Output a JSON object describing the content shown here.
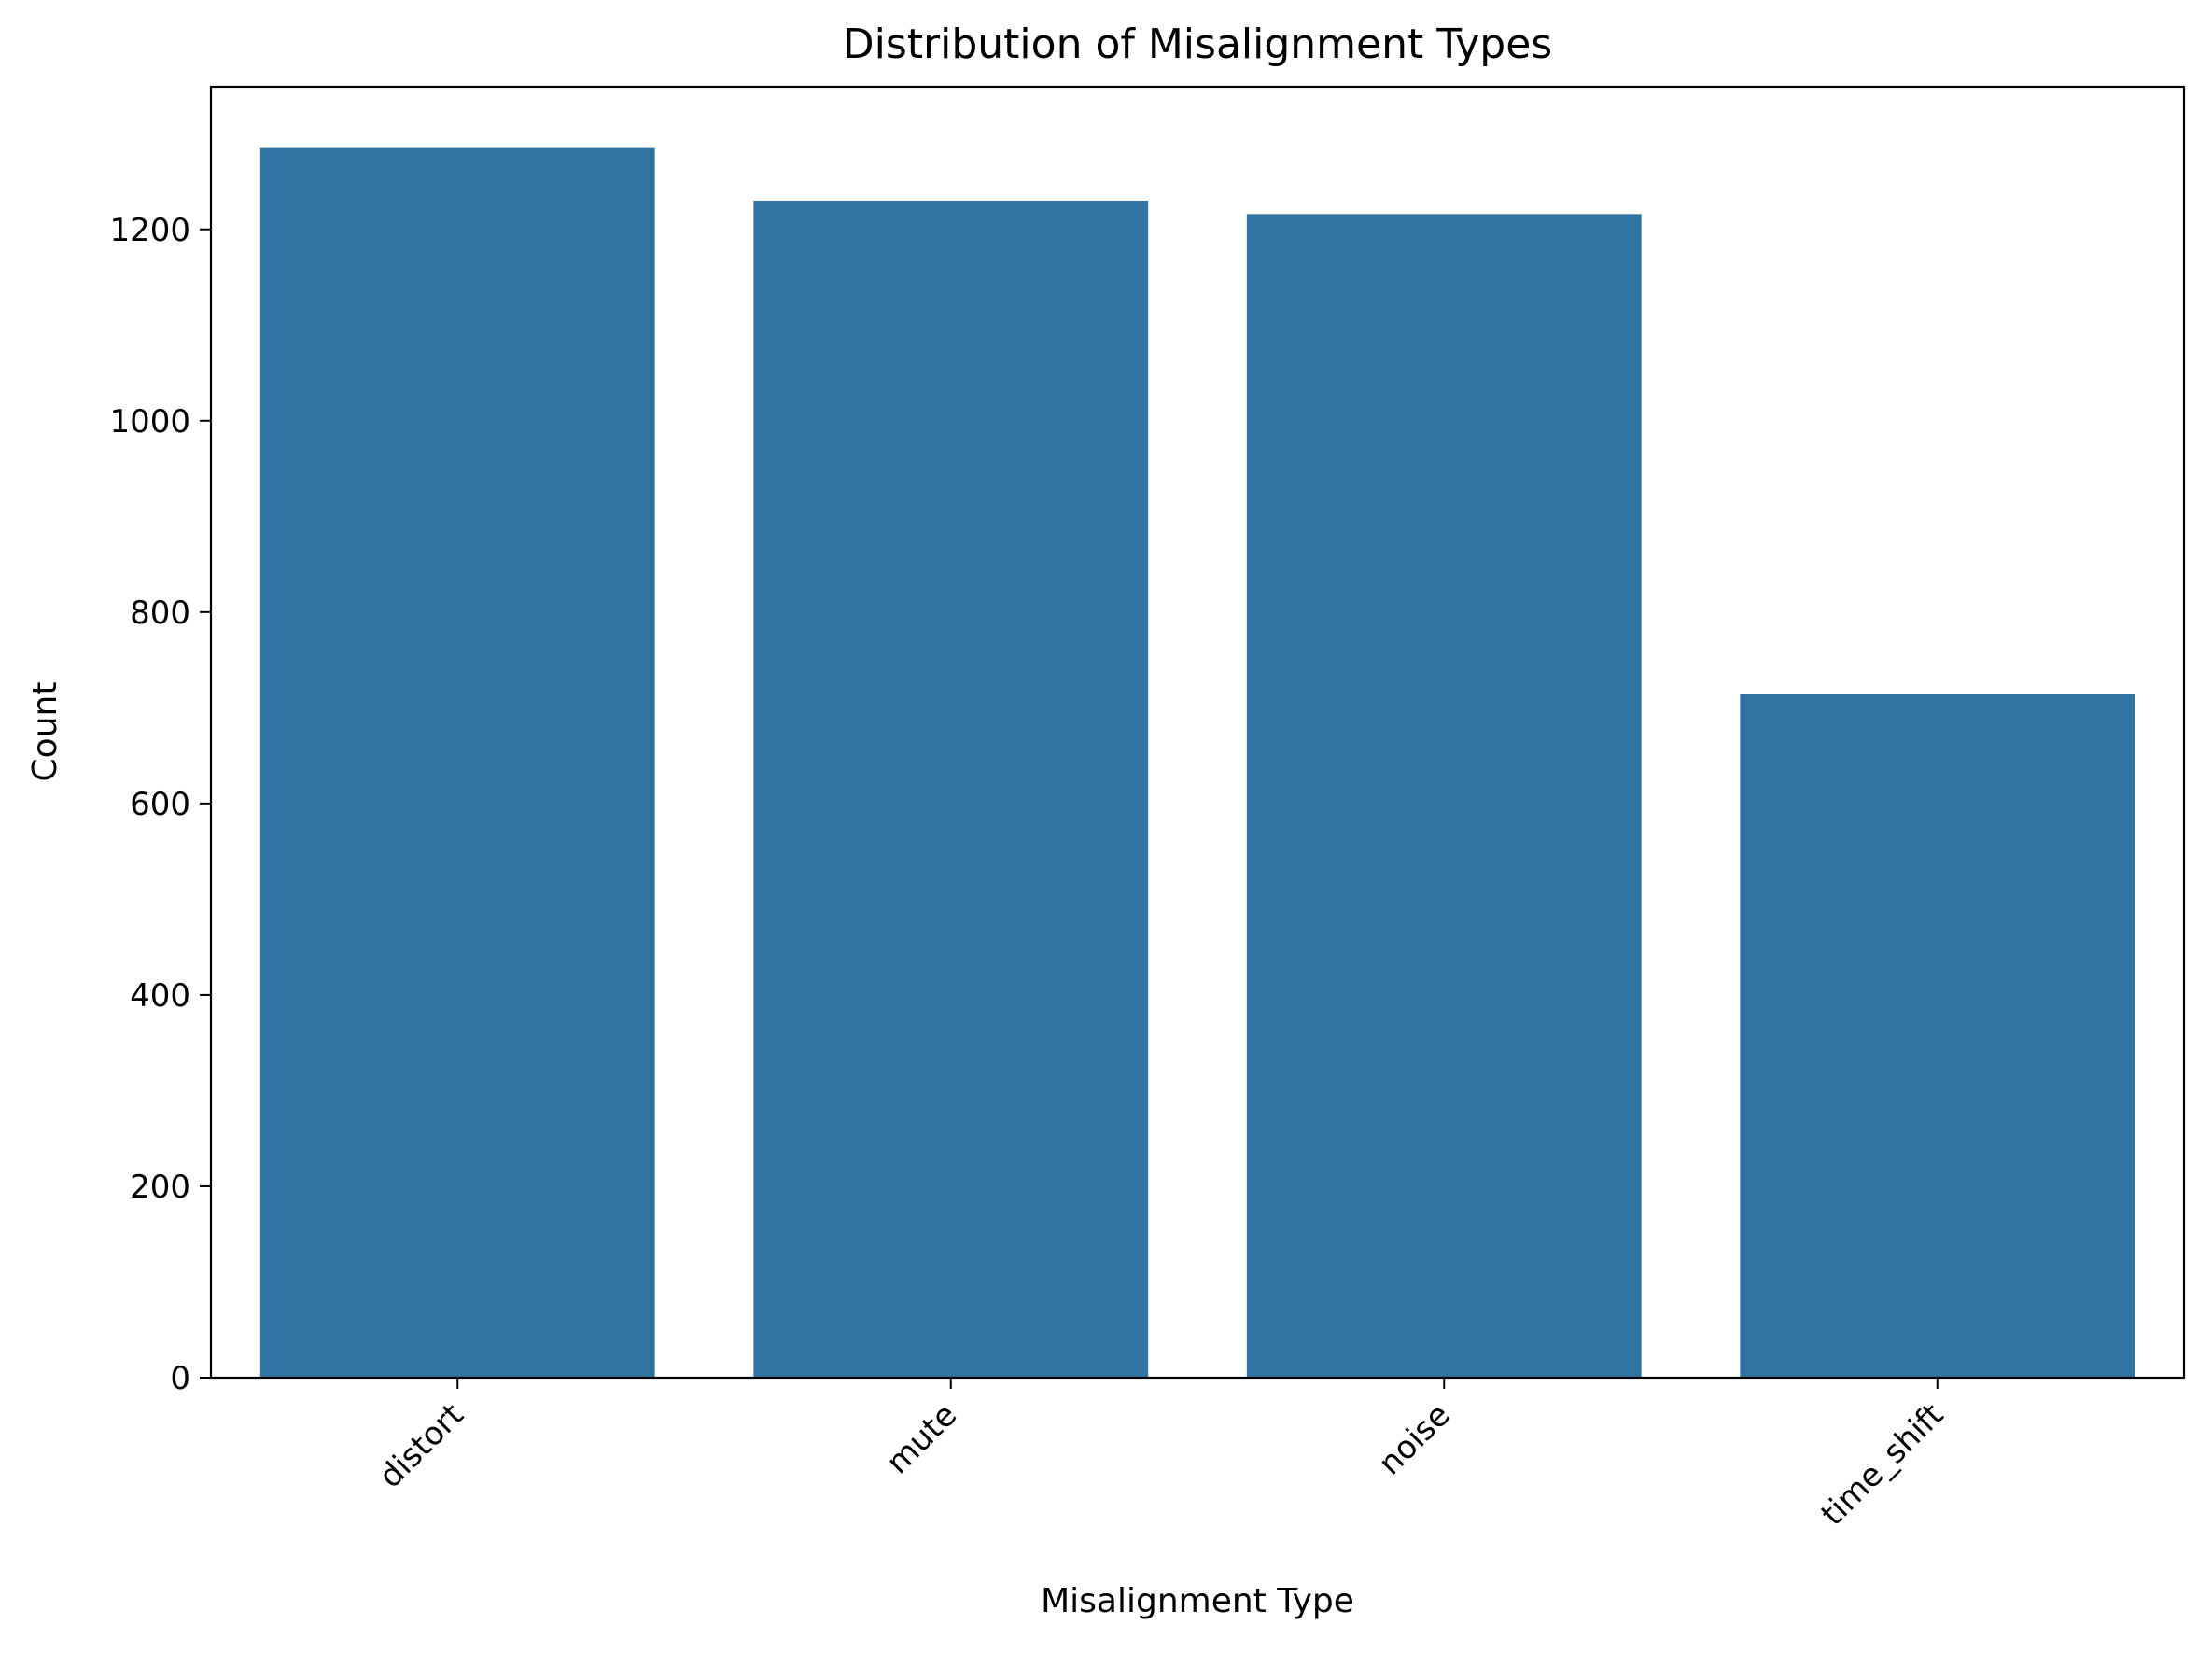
{
  "chart_data": {
    "type": "bar",
    "title": "Distribution of Misalignment Types",
    "xlabel": "Misalignment Type",
    "ylabel": "Count",
    "categories": [
      "distort",
      "mute",
      "noise",
      "time_shift"
    ],
    "values": [
      1285,
      1230,
      1216,
      714
    ],
    "ylim": [
      0,
      1349
    ],
    "yticks": [
      0,
      200,
      400,
      600,
      800,
      1000,
      1200
    ],
    "grid": false,
    "bar_color": "#3274a1"
  }
}
